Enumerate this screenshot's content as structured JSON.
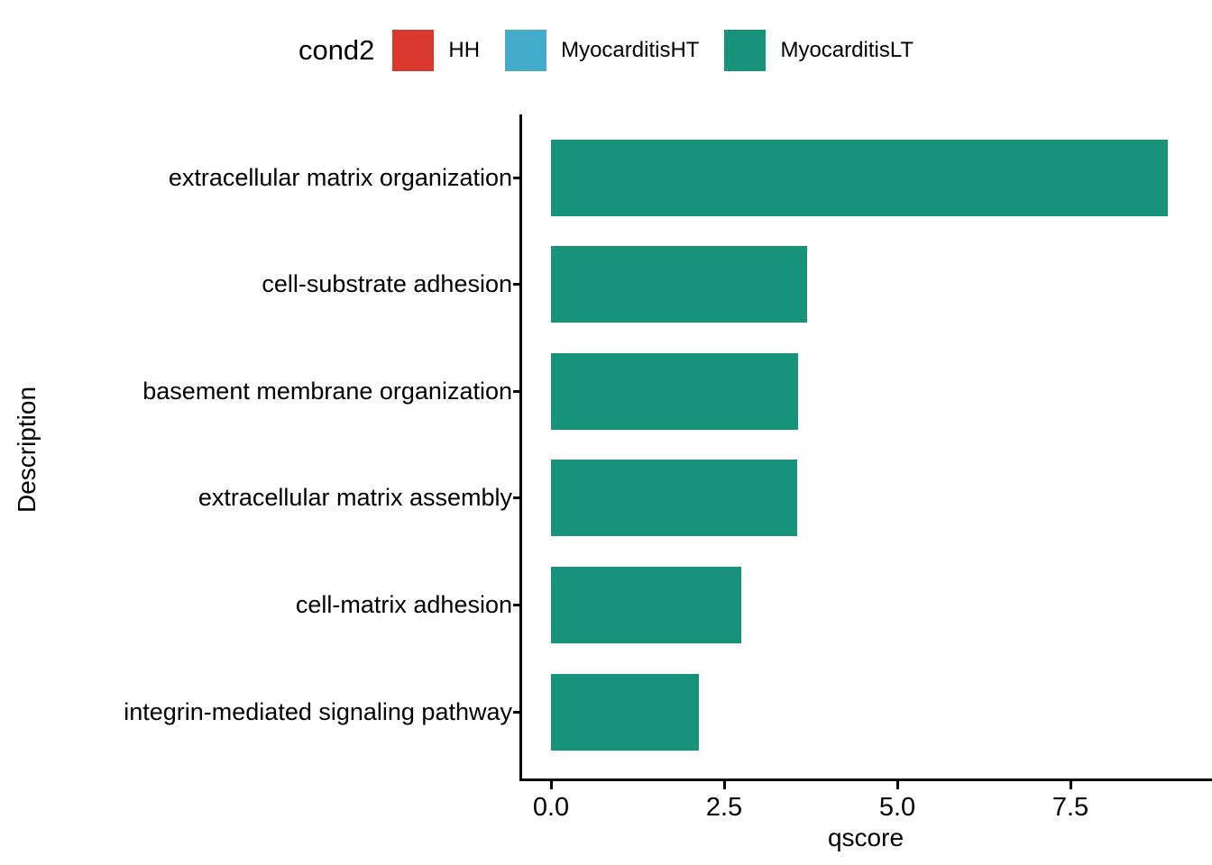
{
  "legend": {
    "title": "cond2",
    "items": [
      {
        "label": "HH",
        "color": "#D9382C"
      },
      {
        "label": "MyocarditisHT",
        "color": "#45ABCB"
      },
      {
        "label": "MyocarditisLT",
        "color": "#17937B"
      }
    ]
  },
  "chart_data": {
    "type": "bar",
    "orientation": "horizontal",
    "title": "",
    "xlabel": "qscore",
    "ylabel": "Description",
    "group": "MyocarditisLT",
    "bar_color": "#17937B",
    "categories": [
      "extracellular matrix organization",
      "cell-substrate adhesion",
      "basement membrane organization",
      "extracellular matrix assembly",
      "cell-matrix adhesion",
      "integrin-mediated signaling pathway"
    ],
    "values": [
      8.9,
      3.7,
      3.57,
      3.55,
      2.75,
      2.13
    ],
    "xlim": [
      0,
      9.5
    ],
    "xticks": [
      0,
      2.5,
      5,
      7.5
    ],
    "xtick_labels": [
      "0.0",
      "2.5",
      "5.0",
      "7.5"
    ],
    "grid": false,
    "legend_position": "top"
  }
}
